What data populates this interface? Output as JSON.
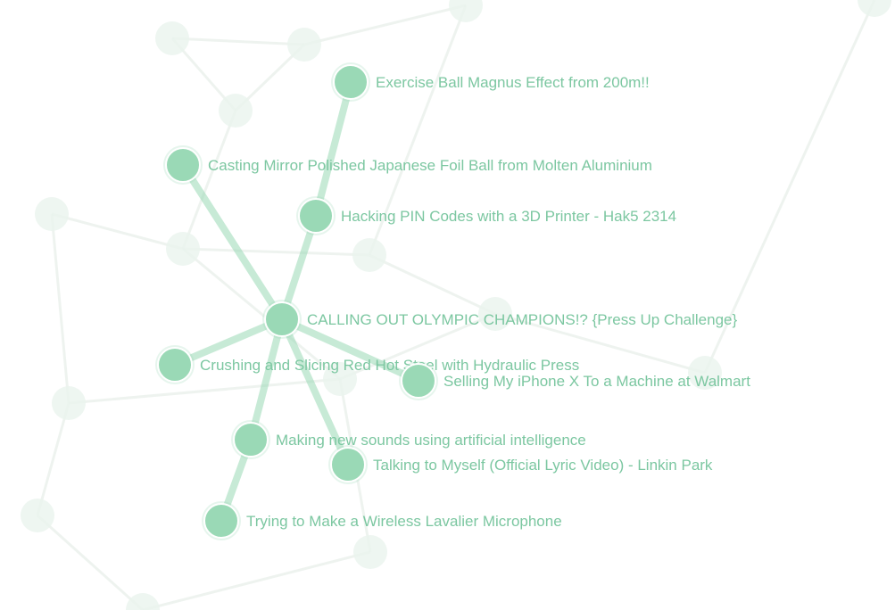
{
  "colors": {
    "node_fill": "#9ad9b6",
    "node_stroke": "#ffffff",
    "edge": "#9ad9b6",
    "label": "#7cc7a1",
    "background_node": "#eaf4ee",
    "background_edge": "#e3ece6"
  },
  "graph": {
    "center": {
      "id": "calling-out-olympic-champions",
      "label": "CALLING OUT OLYMPIC CHAMPIONS!?  {Press Up Challenge}"
    },
    "nodes": [
      {
        "id": "exercise-ball-magnus",
        "label": "Exercise Ball Magnus Effect from 200m!!"
      },
      {
        "id": "casting-mirror-foil-ball",
        "label": "Casting Mirror Polished Japanese Foil Ball from Molten Aluminium"
      },
      {
        "id": "hacking-pin-codes",
        "label": "Hacking PIN Codes with a 3D Printer - Hak5 2314"
      },
      {
        "id": "crushing-slicing-steel",
        "label": "Crushing and Slicing Red Hot Steel with Hydraulic Press"
      },
      {
        "id": "selling-iphone-x",
        "label": "Selling My iPhone X To a Machine at Walmart"
      },
      {
        "id": "making-new-sounds",
        "label": "Making new sounds using artificial intelligence"
      },
      {
        "id": "talking-to-myself",
        "label": "Talking to Myself (Official Lyric Video) - Linkin Park"
      },
      {
        "id": "wireless-lavalier",
        "label": "Trying to Make a Wireless Lavalier Microphone"
      }
    ],
    "edges": [
      {
        "from": "calling-out-olympic-champions",
        "to": "casting-mirror-foil-ball"
      },
      {
        "from": "calling-out-olympic-champions",
        "to": "hacking-pin-codes"
      },
      {
        "from": "hacking-pin-codes",
        "to": "exercise-ball-magnus"
      },
      {
        "from": "calling-out-olympic-champions",
        "to": "crushing-slicing-steel"
      },
      {
        "from": "calling-out-olympic-champions",
        "to": "selling-iphone-x"
      },
      {
        "from": "calling-out-olympic-champions",
        "to": "making-new-sounds"
      },
      {
        "from": "calling-out-olympic-champions",
        "to": "talking-to-myself"
      },
      {
        "from": "making-new-sounds",
        "to": "wireless-lavalier"
      }
    ]
  }
}
